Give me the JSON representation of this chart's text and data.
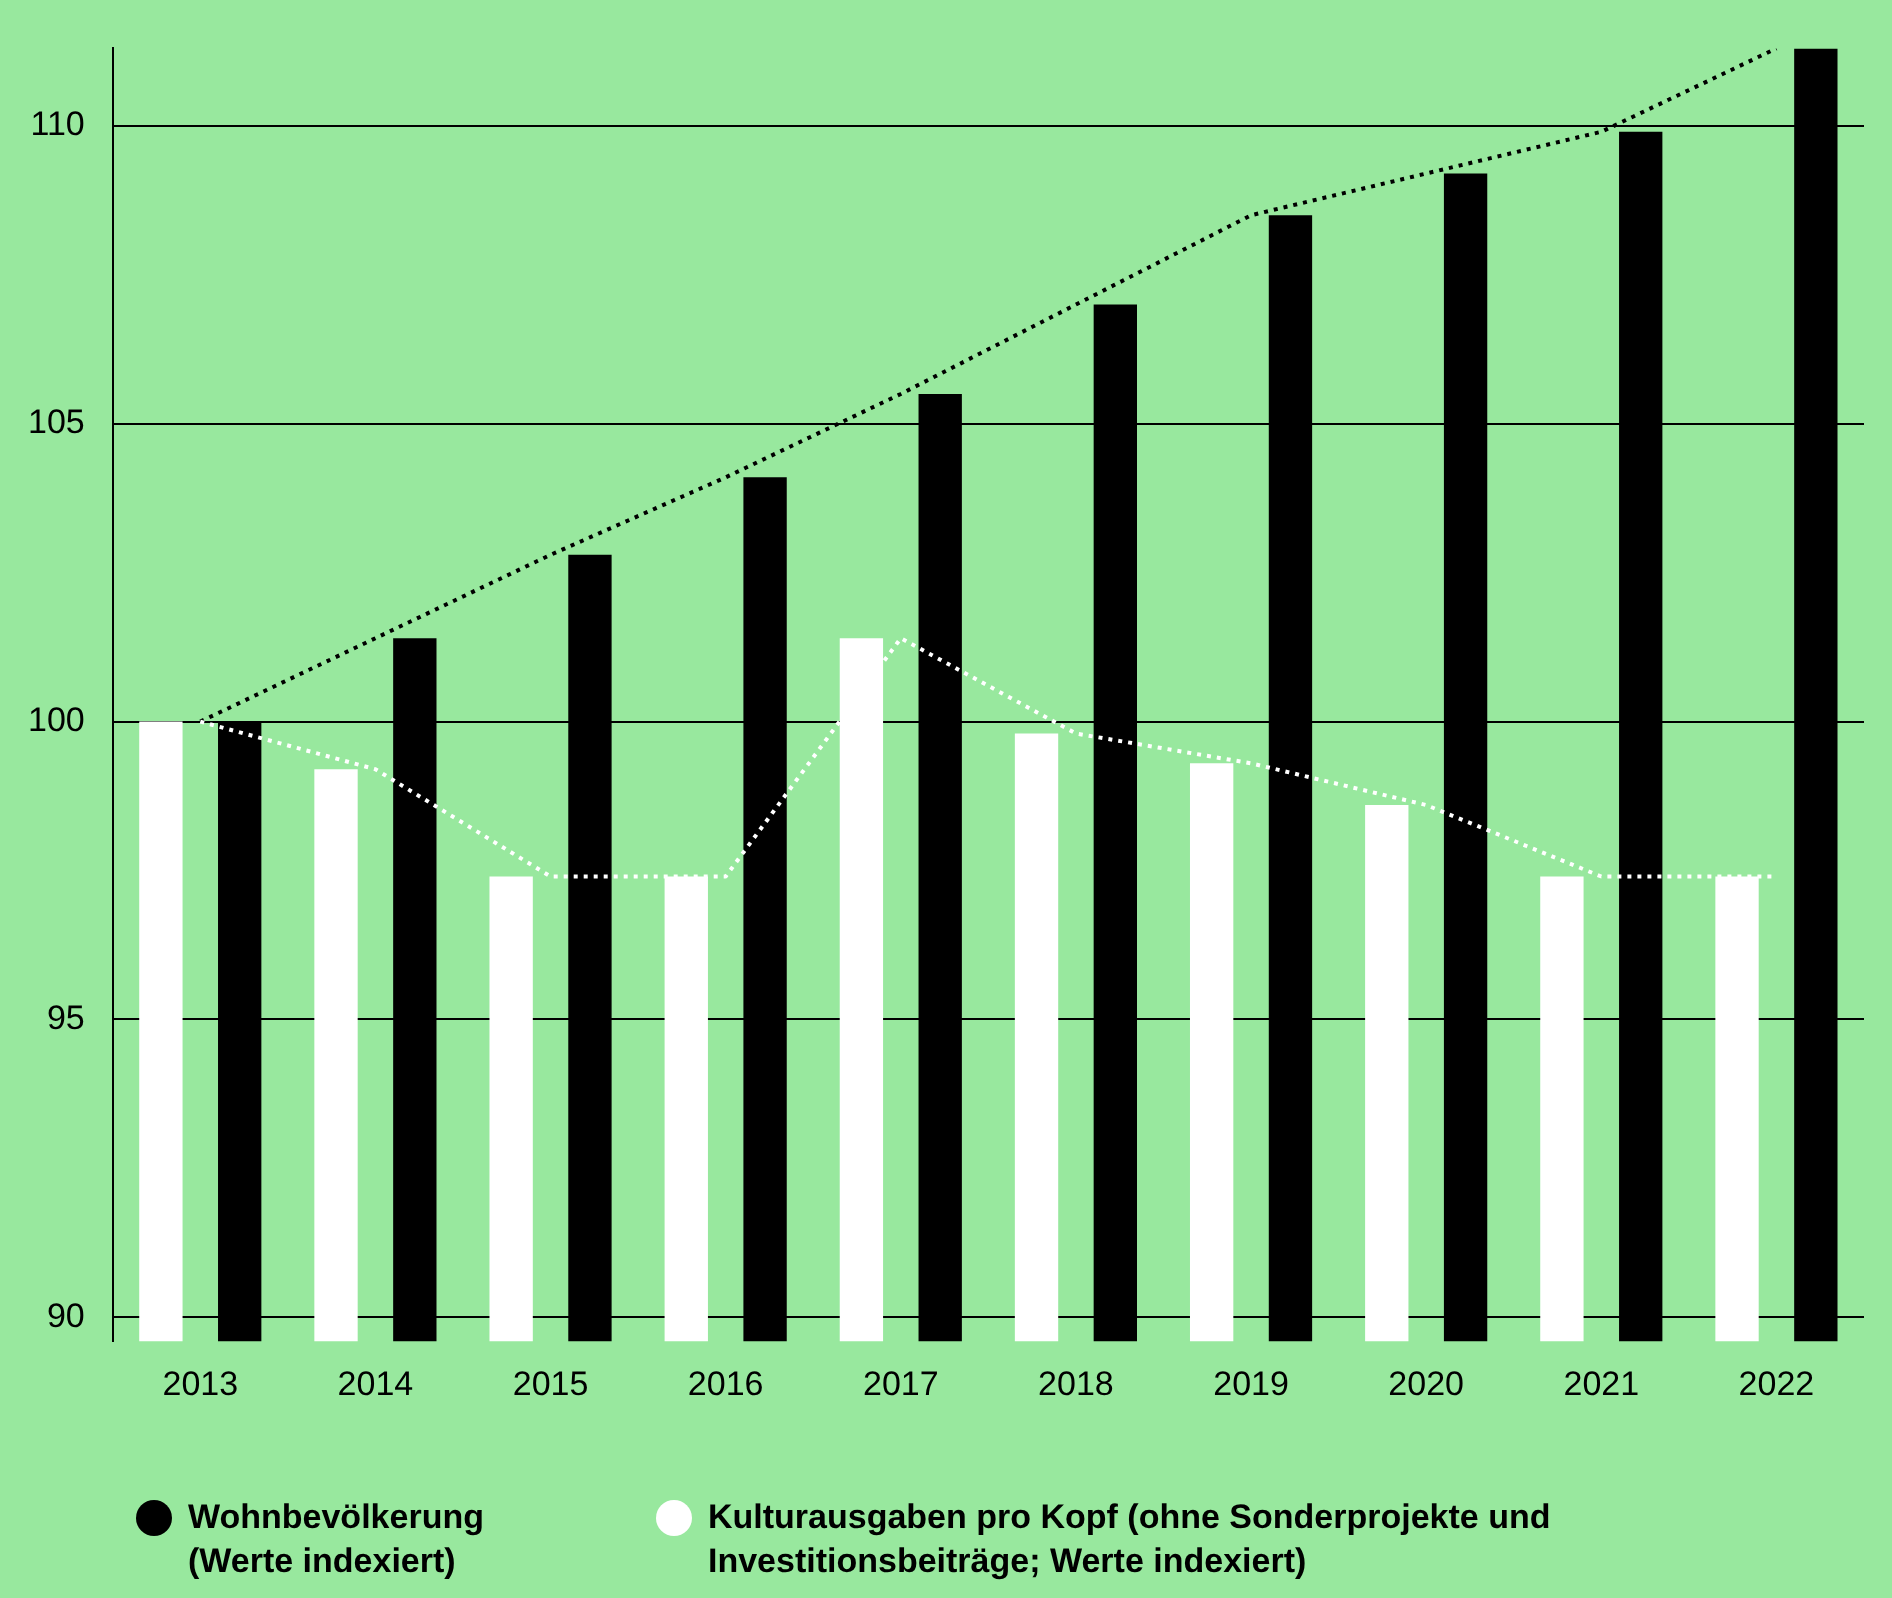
{
  "chart_data": {
    "type": "bar",
    "categories": [
      "2013",
      "2014",
      "2015",
      "2016",
      "2017",
      "2018",
      "2019",
      "2020",
      "2021",
      "2022"
    ],
    "series": [
      {
        "name": "Kulturausgaben pro Kopf (ohne Sonderprojekte und Investitionsbeiträge; Werte indexiert)",
        "color": "#ffffff",
        "values": [
          100,
          99.2,
          97.4,
          97.4,
          101.4,
          99.8,
          99.3,
          98.6,
          97.4,
          97.4
        ]
      },
      {
        "name": "Wohnbevölkerung (Werte indexiert)",
        "color": "#000000",
        "values": [
          100,
          101.4,
          102.8,
          104.1,
          105.5,
          107.0,
          108.5,
          109.2,
          109.9,
          111.3
        ]
      },
      {
        "type": "line",
        "color": "#ffffff",
        "values": [
          100,
          99.2,
          97.4,
          97.4,
          101.4,
          99.8,
          99.3,
          98.6,
          97.4,
          97.4
        ]
      },
      {
        "type": "line",
        "color": "#000000",
        "values": [
          100,
          101.4,
          102.8,
          104.1,
          105.5,
          107.0,
          108.5,
          109.2,
          109.9,
          111.3
        ]
      }
    ],
    "ylim": [
      89.6,
      111.3
    ],
    "yticks": [
      90,
      95,
      100,
      105,
      110
    ],
    "grid": "y",
    "legend": "bottom left",
    "line_style": "dotted"
  }
}
